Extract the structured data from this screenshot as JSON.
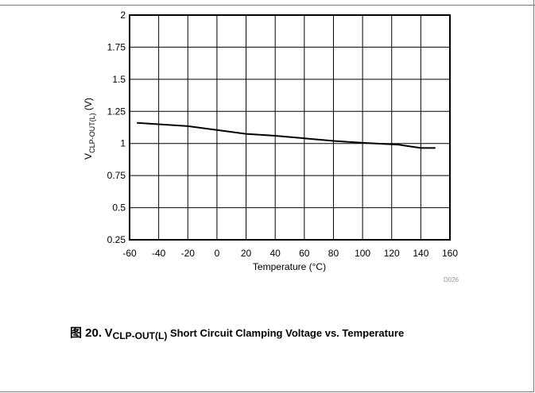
{
  "chart_data": {
    "type": "line",
    "title": "",
    "xlabel": "Temperature (°C)",
    "ylabel_main": "V",
    "ylabel_sub": "CLP-OUT(L)",
    "ylabel_unit": " (V)",
    "xlim": [
      -60,
      160
    ],
    "ylim": [
      0.25,
      2
    ],
    "xticks": [
      -60,
      -40,
      -20,
      0,
      20,
      40,
      60,
      80,
      100,
      120,
      140,
      160
    ],
    "yticks": [
      0.25,
      0.5,
      0.75,
      1,
      1.25,
      1.5,
      1.75,
      2
    ],
    "yticklabels": [
      "0.25",
      "0.5",
      "0.75",
      "1",
      "1.25",
      "1.5",
      "1.75",
      "2"
    ],
    "grid": true,
    "series": [
      {
        "x": [
          -55,
          -40,
          -20,
          0,
          20,
          40,
          60,
          80,
          100,
          125,
          140,
          150
        ],
        "y": [
          1.16,
          1.15,
          1.135,
          1.105,
          1.075,
          1.06,
          1.04,
          1.02,
          1.005,
          0.99,
          0.965,
          0.965
        ]
      }
    ]
  },
  "figure_code": "D026",
  "caption": {
    "figure_label": "图 20.",
    "v_symbol": "V",
    "v_subscript": "CLP-OUT(L)",
    "text": " Short Circuit Clamping Voltage vs. Temperature"
  }
}
